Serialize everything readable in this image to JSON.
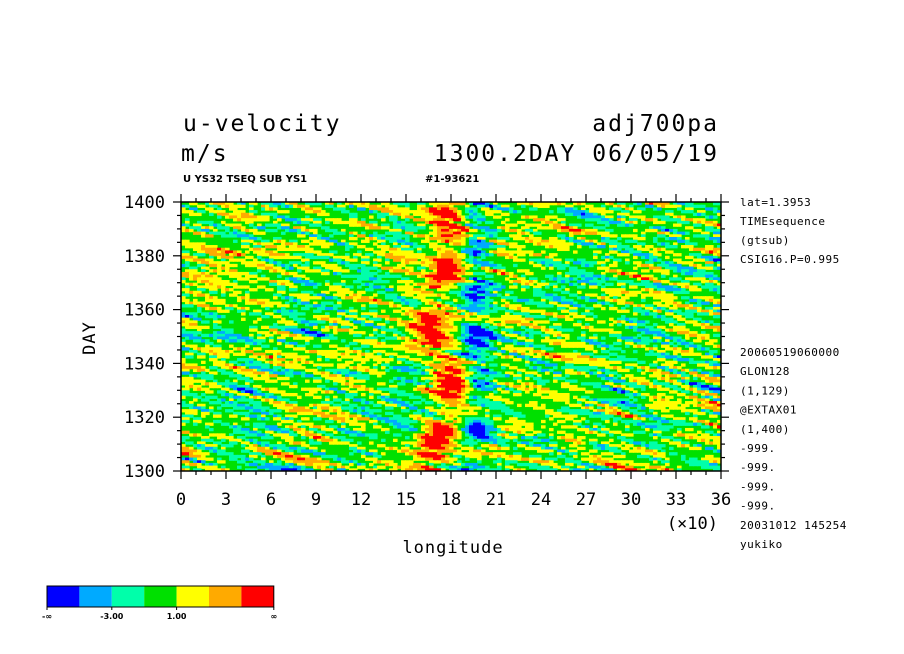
{
  "titles": {
    "variable": "u-velocity",
    "dataset": "adj700pa",
    "units": "m/s",
    "time": "1300.2DAY 06/05/19",
    "subtitle_left": "U YS32 TSEQ SUB YS1",
    "subtitle_right": "#1-93621"
  },
  "side_info": {
    "top": [
      "lat=1.3953",
      "TIMEsequence",
      "(gtsub)",
      "CSIG16.P=0.995"
    ],
    "bottom": [
      "20060519060000",
      "GLON128",
      "(1,129)",
      "@EXTAX01",
      "(1,400)",
      "-999.",
      "-999.",
      "-999.",
      "-999.",
      "20031012 145254",
      "yukiko"
    ]
  },
  "colors": {
    "levels": [
      "#0000ff",
      "#00aaff",
      "#00ffaa",
      "#00e000",
      "#ffff00",
      "#ffaa00",
      "#ff0000"
    ]
  },
  "chart_data": {
    "type": "heatmap",
    "title": "u-velocity",
    "xlabel": "longitude",
    "ylabel": "DAY",
    "x_multiplier_label": "(×10)",
    "xlim": [
      0,
      36
    ],
    "ylim": [
      1300,
      1400
    ],
    "x_ticks": [
      "0",
      "3",
      "6",
      "9",
      "12",
      "15",
      "18",
      "21",
      "24",
      "27",
      "30",
      "33",
      "36"
    ],
    "y_ticks": [
      "1300",
      "1320",
      "1340",
      "1360",
      "1380",
      "1400"
    ],
    "legend": {
      "labels": [
        "-∞",
        "-3.00",
        "1.00",
        "∞"
      ]
    }
  }
}
